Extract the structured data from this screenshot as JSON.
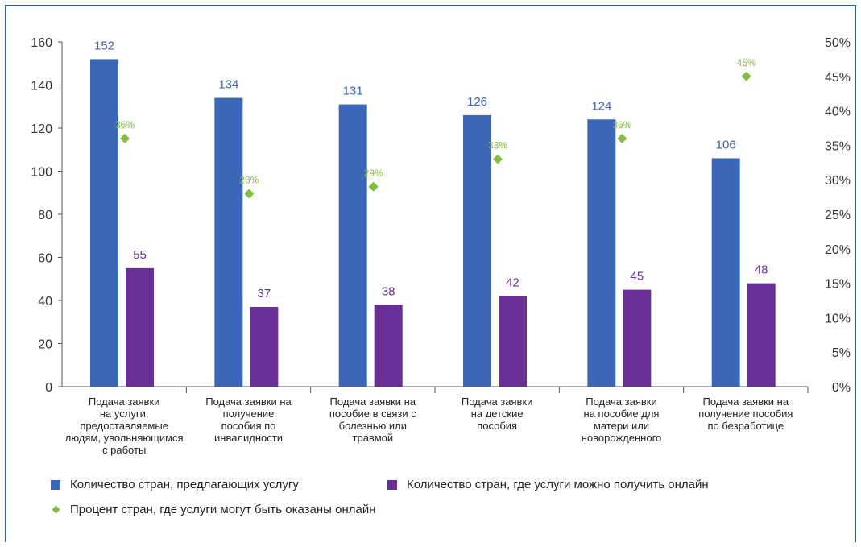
{
  "chart_data": {
    "type": "bar",
    "categories": [
      [
        "Подача заявки",
        "на услуги,",
        "предоставляемые",
        "людям, увольняющимся",
        "с работы"
      ],
      [
        "Подача заявки на",
        "получение",
        "пособия по",
        "инвалидности"
      ],
      [
        "Подача заявки на",
        "пособие в связи с",
        "болезнью или",
        "травмой"
      ],
      [
        "Подача заявки",
        "на детские",
        "пособия"
      ],
      [
        "Подача заявки",
        "на пособие для",
        "матери или",
        "новорожденного"
      ],
      [
        "Подача заявки на",
        "получение пособия",
        "по безработице"
      ]
    ],
    "series": [
      {
        "name": "Количество стран, предлагающих услугу",
        "type": "bar",
        "axis": "left",
        "color": "#3c66b7",
        "values": [
          152,
          134,
          131,
          126,
          124,
          106
        ],
        "labels": [
          "152",
          "134",
          "131",
          "126",
          "124",
          "106"
        ]
      },
      {
        "name": "Количество стран, где услуги можно получить онлайн",
        "type": "bar",
        "axis": "left",
        "color": "#6a2f97",
        "values": [
          55,
          37,
          38,
          42,
          45,
          48
        ],
        "labels": [
          "55",
          "37",
          "38",
          "42",
          "45",
          "48"
        ]
      },
      {
        "name": "Процент стран, где услуги могут быть оказаны онлайн",
        "type": "scatter",
        "axis": "right",
        "color": "#7fbf3b",
        "values": [
          36,
          28,
          29,
          33,
          36,
          45
        ],
        "labels": [
          "36%",
          "28%",
          "29%",
          "33%",
          "36%",
          "45%"
        ]
      }
    ],
    "ylim": [
      0,
      160
    ],
    "yticks": [
      "0",
      "20",
      "40",
      "60",
      "80",
      "100",
      "120",
      "140",
      "160"
    ],
    "y2lim": [
      0,
      50
    ],
    "y2ticks": [
      "0%",
      "5%",
      "10%",
      "15%",
      "20%",
      "25%",
      "30%",
      "35%",
      "40%",
      "45%",
      "50%"
    ],
    "legend_position": "bottom-left",
    "grid": false
  },
  "legend": {
    "blue": "Количество стран, предлагающих услугу",
    "purple": "Количество стран, где услуги можно получить онлайн",
    "green": "Процент стран, где услуги могут быть оказаны онлайн"
  }
}
